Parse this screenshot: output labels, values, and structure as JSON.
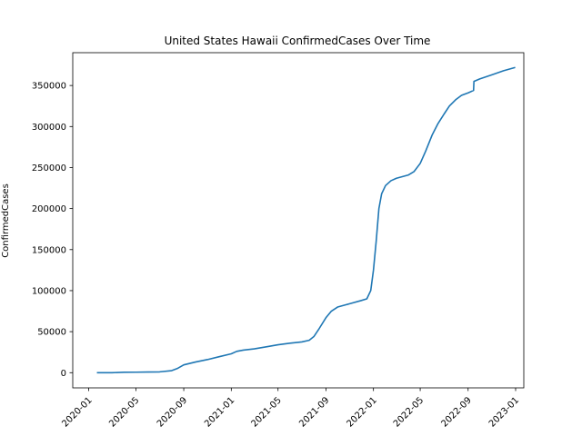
{
  "chart_data": {
    "type": "line",
    "title": "United States Hawaii ConfirmedCases Over Time",
    "xlabel": "",
    "ylabel": "ConfirmedCases",
    "grid": false,
    "legend": "none",
    "line_color": "#1f77b4",
    "xlim": [
      "2019-11-21",
      "2023-01-22"
    ],
    "ylim": [
      -18500,
      390000
    ],
    "x_ticks": [
      "2020-01",
      "2020-05",
      "2020-09",
      "2021-01",
      "2021-05",
      "2021-09",
      "2022-01",
      "2022-05",
      "2022-09",
      "2023-01"
    ],
    "y_ticks": [
      0,
      50000,
      100000,
      150000,
      200000,
      250000,
      300000,
      350000
    ],
    "y_tick_labels": [
      "0",
      "50000",
      "100000",
      "150000",
      "200000",
      "250000",
      "300000",
      "350000"
    ],
    "series": [
      {
        "points": [
          [
            "2020-01-22",
            0
          ],
          [
            "2020-03-01",
            0
          ],
          [
            "2020-04-01",
            500
          ],
          [
            "2020-05-01",
            600
          ],
          [
            "2020-06-01",
            800
          ],
          [
            "2020-07-01",
            1000
          ],
          [
            "2020-08-01",
            2500
          ],
          [
            "2020-08-15",
            5000
          ],
          [
            "2020-09-01",
            9500
          ],
          [
            "2020-10-01",
            13000
          ],
          [
            "2020-11-01",
            16000
          ],
          [
            "2020-12-01",
            19500
          ],
          [
            "2021-01-01",
            23000
          ],
          [
            "2021-01-15",
            26000
          ],
          [
            "2021-02-01",
            27500
          ],
          [
            "2021-03-01",
            29000
          ],
          [
            "2021-04-01",
            31500
          ],
          [
            "2021-05-01",
            34000
          ],
          [
            "2021-06-01",
            36000
          ],
          [
            "2021-07-01",
            37500
          ],
          [
            "2021-07-20",
            39500
          ],
          [
            "2021-08-01",
            44000
          ],
          [
            "2021-08-15",
            54000
          ],
          [
            "2021-09-01",
            67000
          ],
          [
            "2021-09-15",
            75000
          ],
          [
            "2021-10-01",
            80000
          ],
          [
            "2021-11-01",
            84000
          ],
          [
            "2021-12-01",
            88000
          ],
          [
            "2021-12-15",
            90000
          ],
          [
            "2021-12-25",
            100000
          ],
          [
            "2022-01-01",
            125000
          ],
          [
            "2022-01-08",
            160000
          ],
          [
            "2022-01-15",
            200000
          ],
          [
            "2022-01-22",
            218000
          ],
          [
            "2022-02-01",
            228000
          ],
          [
            "2022-02-15",
            234000
          ],
          [
            "2022-03-01",
            237000
          ],
          [
            "2022-04-01",
            241000
          ],
          [
            "2022-04-15",
            245000
          ],
          [
            "2022-05-01",
            255000
          ],
          [
            "2022-05-15",
            270000
          ],
          [
            "2022-06-01",
            290000
          ],
          [
            "2022-06-15",
            303000
          ],
          [
            "2022-07-01",
            315000
          ],
          [
            "2022-07-15",
            325000
          ],
          [
            "2022-08-01",
            333000
          ],
          [
            "2022-08-15",
            338000
          ],
          [
            "2022-09-01",
            341000
          ],
          [
            "2022-09-15",
            344000
          ],
          [
            "2022-09-16",
            355000
          ],
          [
            "2022-10-01",
            358000
          ],
          [
            "2022-11-01",
            363000
          ],
          [
            "2022-12-01",
            368000
          ],
          [
            "2022-12-31",
            372000
          ]
        ]
      }
    ]
  }
}
